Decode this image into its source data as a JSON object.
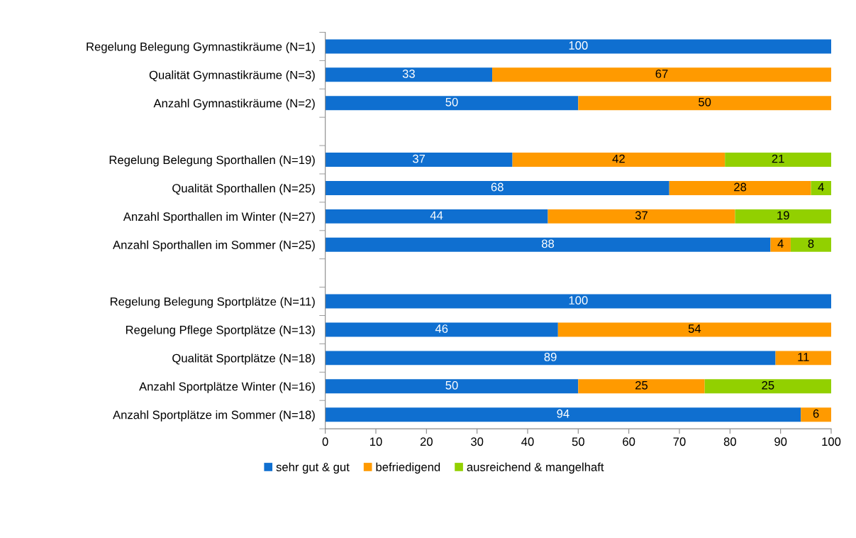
{
  "chart_data": {
    "type": "bar",
    "orientation": "horizontal",
    "stacked": true,
    "categories": [
      "Regelung Belegung Gymnastikräume (N=1)",
      "Qualität Gymnastikräume (N=3)",
      "Anzahl Gymnastikräume (N=2)",
      null,
      "Regelung Belegung Sporthallen (N=19)",
      "Qualität Sporthallen (N=25)",
      "Anzahl Sporthallen im Winter (N=27)",
      "Anzahl Sporthallen im Sommer (N=25)",
      null,
      "Regelung Belegung Sportplätze (N=11)",
      "Regelung Pflege Sportplätze (N=13)",
      "Qualität Sportplätze (N=18)",
      "Anzahl Sportplätze Winter (N=16)",
      "Anzahl Sportplätze im Sommer (N=18)"
    ],
    "series": [
      {
        "name": "sehr gut & gut",
        "color": "#0f6fd0",
        "values": [
          100,
          33,
          50,
          null,
          37,
          68,
          44,
          88,
          null,
          100,
          46,
          89,
          50,
          94
        ]
      },
      {
        "name": "befriedigend",
        "color": "#ff9a00",
        "values": [
          null,
          67,
          50,
          null,
          42,
          28,
          37,
          4,
          null,
          null,
          54,
          11,
          25,
          6
        ]
      },
      {
        "name": "ausreichend & mangelhaft",
        "color": "#92d000",
        "values": [
          null,
          null,
          null,
          null,
          21,
          4,
          19,
          8,
          null,
          null,
          null,
          null,
          25,
          null
        ]
      }
    ],
    "xlim": [
      0,
      100
    ],
    "xticks": [
      0,
      10,
      20,
      30,
      40,
      50,
      60,
      70,
      80,
      90,
      100
    ],
    "data_labels": true,
    "grid": false,
    "legend": "bottom"
  }
}
